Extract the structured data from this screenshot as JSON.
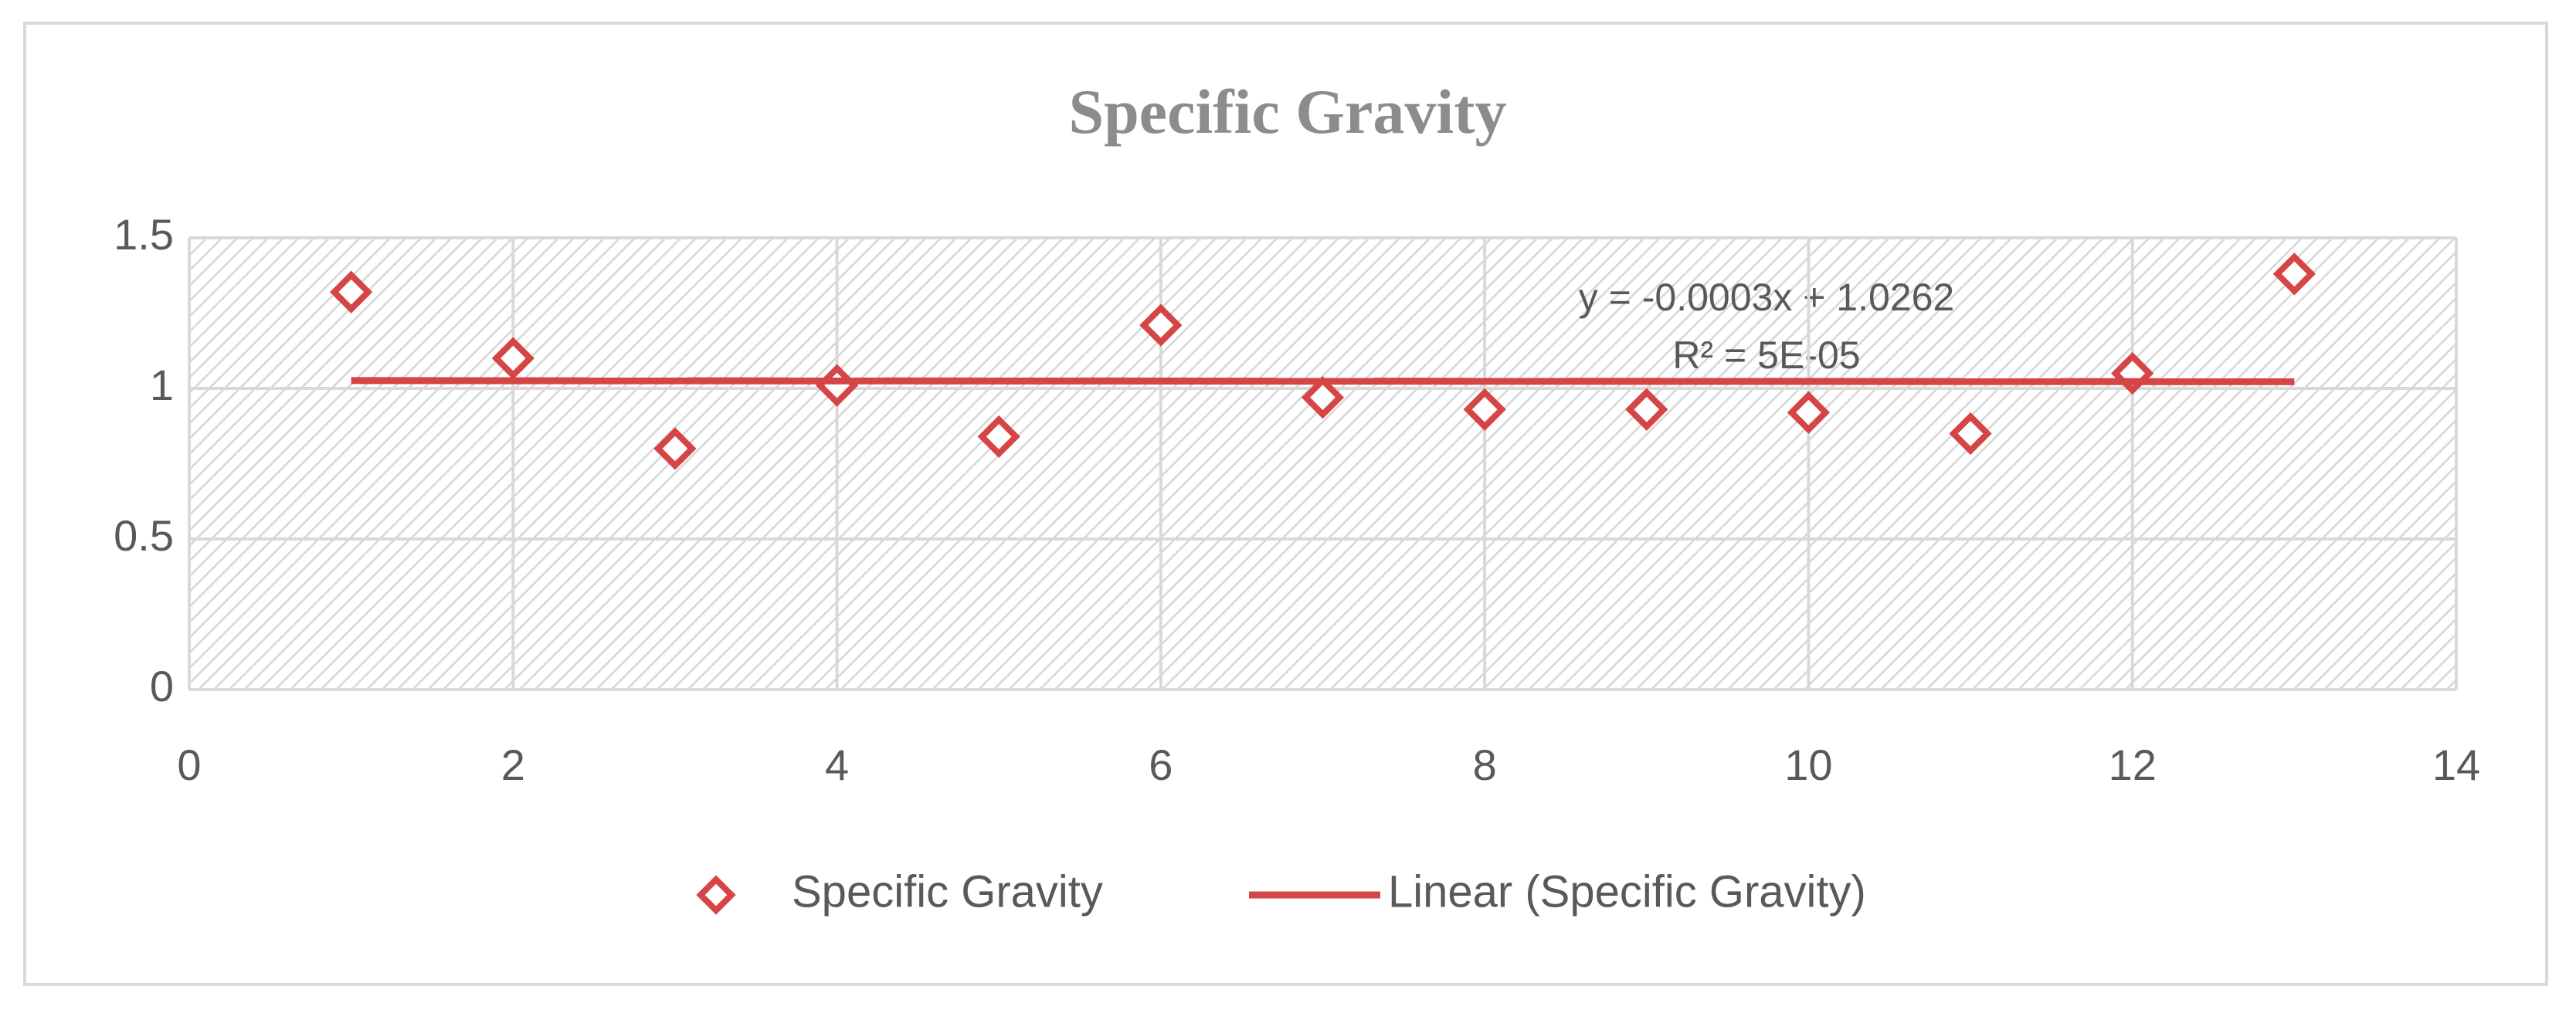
{
  "chart_data": {
    "type": "scatter",
    "title": "Specific Gravity",
    "series": [
      {
        "name": "Specific Gravity",
        "type": "scatter",
        "color": "#d64545",
        "x": [
          1,
          2,
          3,
          4,
          5,
          6,
          7,
          8,
          9,
          10,
          11,
          12,
          13
        ],
        "values": [
          1.32,
          1.1,
          0.8,
          1.01,
          0.84,
          1.21,
          0.97,
          0.93,
          0.93,
          0.92,
          0.85,
          1.05,
          1.38
        ]
      },
      {
        "name": "Linear (Specific Gravity)",
        "type": "line",
        "color": "#d64545",
        "x": [
          1,
          13
        ],
        "values": [
          1.0259,
          1.0223
        ]
      }
    ],
    "annotations": [
      "y = -0.0003x + 1.0262",
      "R² = 5E-05"
    ],
    "xlim": [
      0,
      14
    ],
    "xticks": [
      0,
      2,
      4,
      6,
      8,
      10,
      12,
      14
    ],
    "ylim": [
      0,
      1.5
    ],
    "yticks": [
      0,
      0.5,
      1,
      1.5
    ],
    "grid": true
  }
}
